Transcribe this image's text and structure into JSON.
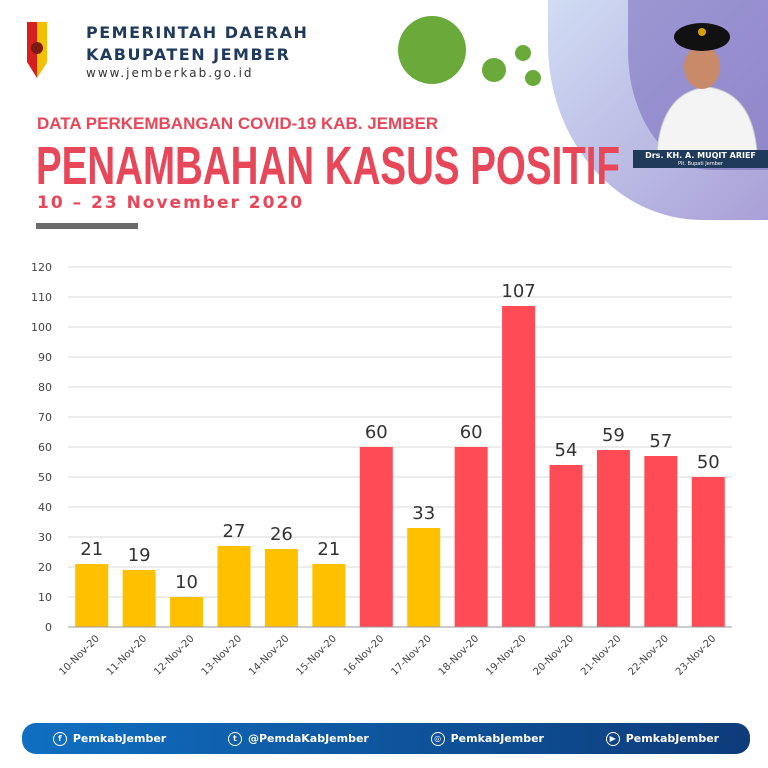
{
  "header": {
    "line1": "PEMERINTAH DAERAH",
    "line2": "KABUPATEN JEMBER",
    "url": "www.jemberkab.go.id"
  },
  "title": {
    "kicker": "DATA PERKEMBANGAN COVID-19 KAB. JEMBER",
    "main": "PENAMBAHAN KASUS POSITIF",
    "period": "10 – 23 November 2020"
  },
  "official": {
    "name": "Drs. KH. A. MUQIT ARIEF",
    "role": "Plt. Bupati Jember"
  },
  "colors": {
    "yellow": "#FFC000",
    "red": "#FF4B55",
    "accent": "#E8475A",
    "footer": "#0E5AA7"
  },
  "chart_data": {
    "type": "bar",
    "title": "",
    "xlabel": "",
    "ylabel": "",
    "ylim": [
      0,
      120
    ],
    "grid": true,
    "yticks": [
      0,
      10,
      20,
      30,
      40,
      50,
      60,
      70,
      80,
      90,
      100,
      110,
      120
    ],
    "categories": [
      "10-Nov-20",
      "11-Nov-20",
      "12-Nov-20",
      "13-Nov-20",
      "14-Nov-20",
      "15-Nov-20",
      "16-Nov-20",
      "17-Nov-20",
      "18-Nov-20",
      "19-Nov-20",
      "20-Nov-20",
      "21-Nov-20",
      "22-Nov-20",
      "23-Nov-20"
    ],
    "values": [
      21,
      19,
      10,
      27,
      26,
      21,
      60,
      33,
      60,
      107,
      54,
      59,
      57,
      50
    ],
    "bar_colors": [
      "yellow",
      "yellow",
      "yellow",
      "yellow",
      "yellow",
      "yellow",
      "red",
      "yellow",
      "red",
      "red",
      "red",
      "red",
      "red",
      "red"
    ]
  },
  "footer": [
    {
      "icon": "facebook-icon",
      "glyph": "f",
      "label": "PemkabJember"
    },
    {
      "icon": "twitter-icon",
      "glyph": "t",
      "label": "@PemdaKabJember"
    },
    {
      "icon": "instagram-icon",
      "glyph": "◎",
      "label": "PemkabJember"
    },
    {
      "icon": "youtube-icon",
      "glyph": "▶",
      "label": "PemkabJember"
    }
  ]
}
